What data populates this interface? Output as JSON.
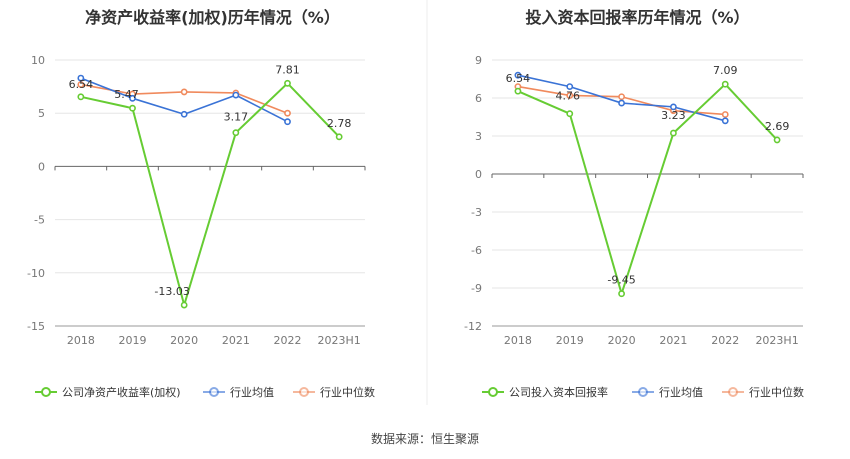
{
  "colors": {
    "company": "#66cc33",
    "industry_avg": "#3a73d6",
    "industry_median": "#f08a5d",
    "grid": "#e6e6e6",
    "axis": "#666666"
  },
  "source": "数据来源：恒生聚源",
  "chart_data": [
    {
      "type": "line",
      "title": "净资产收益率(加权)历年情况（%）",
      "categories": [
        "2018",
        "2019",
        "2020",
        "2021",
        "2022",
        "2023H1"
      ],
      "ylim": [
        -15,
        10
      ],
      "yticks": [
        10,
        5,
        0,
        -5,
        -10,
        -15
      ],
      "grid": true,
      "legend_position": "bottom",
      "series": [
        {
          "name": "公司净资产收益率(加权)",
          "key": "company",
          "values": [
            6.54,
            5.47,
            -13.03,
            3.17,
            7.81,
            2.78
          ],
          "labels": [
            "6.54",
            "5.47",
            "-13.03",
            "3.17",
            "7.81",
            "2.78"
          ]
        },
        {
          "name": "行业均值",
          "key": "industry_avg",
          "values": [
            8.3,
            6.4,
            4.9,
            6.7,
            4.2,
            null
          ]
        },
        {
          "name": "行业中位数",
          "key": "industry_median",
          "values": [
            7.7,
            6.8,
            7.0,
            6.9,
            5.0,
            null
          ]
        }
      ]
    },
    {
      "type": "line",
      "title": "投入资本回报率历年情况（%）",
      "categories": [
        "2018",
        "2019",
        "2020",
        "2021",
        "2022",
        "2023H1"
      ],
      "ylim": [
        -12,
        9
      ],
      "yticks": [
        9,
        6,
        3,
        0,
        -3,
        -6,
        -9,
        -12
      ],
      "grid": true,
      "legend_position": "bottom",
      "series": [
        {
          "name": "公司投入资本回报率",
          "key": "company",
          "values": [
            6.54,
            4.76,
            -9.45,
            3.23,
            7.09,
            2.69
          ],
          "labels": [
            "6.54",
            "4.76",
            "-9.45",
            "3.23",
            "7.09",
            "2.69"
          ]
        },
        {
          "name": "行业均值",
          "key": "industry_avg",
          "values": [
            7.8,
            6.9,
            5.6,
            5.3,
            4.2,
            null
          ]
        },
        {
          "name": "行业中位数",
          "key": "industry_median",
          "values": [
            6.9,
            6.2,
            6.1,
            5.0,
            4.7,
            null
          ]
        }
      ]
    }
  ]
}
